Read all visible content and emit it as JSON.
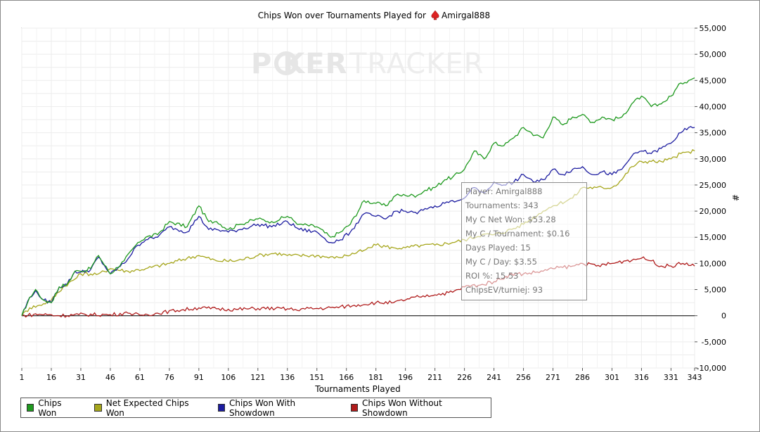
{
  "window": {
    "title_prefix": "Chips Won over Tournaments Played for",
    "player_name": "Amirgal888",
    "player_icon": "spade-icon"
  },
  "watermark": {
    "text_poker": "P KER",
    "text_tracker": "TRACKER"
  },
  "axes": {
    "xlabel": "Tournaments Played",
    "ylabel": "#"
  },
  "legend": [
    {
      "label": "Chips Won",
      "color": "#1f9a1f"
    },
    {
      "label": "Net Expected Chips Won",
      "color": "#a6a61c"
    },
    {
      "label": "Chips Won With Showdown",
      "color": "#1c1ca0"
    },
    {
      "label": "Chips Won Without Showdown",
      "color": "#b01c1c"
    }
  ],
  "tooltip": {
    "lines": [
      "Player: Amirgal888",
      "Tournaments: 343",
      "My C Net Won: $53.28",
      "My C / Tournament: $0.16",
      "Days Played: 15",
      "My C / Day: $3.55",
      "ROI %: 15.53",
      "ChipsEV/turniej: 93"
    ]
  },
  "chart_data": {
    "type": "line",
    "title": "Chips Won over Tournaments Played for Amirgal888",
    "xlabel": "Tournaments Played",
    "ylabel": "#",
    "xlim": [
      1,
      343
    ],
    "ylim": [
      -10000,
      55000
    ],
    "x_ticks": [
      1,
      16,
      31,
      46,
      61,
      76,
      91,
      106,
      121,
      136,
      151,
      166,
      181,
      196,
      211,
      226,
      241,
      256,
      271,
      286,
      301,
      316,
      331,
      343
    ],
    "y_ticks": [
      -10000,
      -5000,
      0,
      5000,
      10000,
      15000,
      20000,
      25000,
      30000,
      35000,
      40000,
      45000,
      50000,
      55000
    ],
    "y_tick_labels": [
      "-10,000",
      "-5,000",
      "0",
      "5,000",
      "10,000",
      "15,000",
      "20,000",
      "25,000",
      "30,000",
      "35,000",
      "40,000",
      "45,000",
      "50,000",
      "55,000"
    ],
    "grid": true,
    "legend_position": "bottom",
    "series": [
      {
        "name": "Chips Won",
        "color": "#1f9a1f",
        "x": [
          1,
          5,
          8,
          12,
          16,
          20,
          24,
          28,
          31,
          36,
          40,
          46,
          53,
          60,
          64,
          70,
          76,
          85,
          91,
          96,
          100,
          106,
          112,
          121,
          128,
          136,
          142,
          151,
          158,
          163,
          168,
          175,
          181,
          186,
          191,
          196,
          202,
          206,
          211,
          216,
          220,
          226,
          231,
          236,
          241,
          246,
          251,
          256,
          262,
          266,
          271,
          276,
          281,
          286,
          291,
          296,
          301,
          306,
          311,
          316,
          321,
          326,
          331,
          336,
          340,
          343
        ],
        "y": [
          0,
          3500,
          5000,
          3000,
          2500,
          5500,
          6000,
          8500,
          8500,
          9000,
          11500,
          8000,
          10500,
          14000,
          15000,
          15500,
          18000,
          17000,
          21000,
          18000,
          18000,
          16500,
          17500,
          18500,
          18000,
          19000,
          17500,
          17000,
          15000,
          16000,
          17500,
          22000,
          21500,
          21000,
          23000,
          23000,
          23000,
          24000,
          24500,
          26000,
          26500,
          28000,
          31500,
          30000,
          33000,
          32500,
          34000,
          36000,
          34500,
          34000,
          38000,
          36500,
          38000,
          38500,
          37000,
          38000,
          37500,
          38000,
          40500,
          42000,
          40000,
          40500,
          42000,
          44500,
          45000,
          45500
        ]
      },
      {
        "name": "Net Expected Chips Won",
        "color": "#a6a61c",
        "x": [
          1,
          5,
          10,
          16,
          22,
          28,
          31,
          40,
          46,
          55,
          64,
          76,
          85,
          91,
          100,
          110,
          121,
          130,
          136,
          145,
          151,
          160,
          166,
          175,
          181,
          190,
          196,
          205,
          211,
          220,
          226,
          235,
          241,
          250,
          256,
          266,
          271,
          281,
          286,
          293,
          301,
          306,
          311,
          316,
          321,
          326,
          331,
          336,
          343
        ],
        "y": [
          0,
          1500,
          2000,
          3000,
          5500,
          7000,
          8000,
          8000,
          9000,
          8500,
          9000,
          10000,
          11000,
          11500,
          10500,
          10500,
          11500,
          12000,
          11500,
          11500,
          11500,
          11000,
          11500,
          12500,
          13500,
          13000,
          13000,
          13500,
          13500,
          14000,
          14500,
          15500,
          15500,
          16500,
          17500,
          20000,
          21000,
          22500,
          24500,
          24500,
          24500,
          26000,
          28500,
          29500,
          29500,
          29500,
          30000,
          31000,
          31500
        ]
      },
      {
        "name": "Chips Won With Showdown",
        "color": "#1c1ca0",
        "x": [
          1,
          5,
          8,
          12,
          16,
          20,
          24,
          28,
          31,
          36,
          40,
          46,
          53,
          60,
          64,
          70,
          76,
          85,
          91,
          96,
          100,
          106,
          112,
          121,
          128,
          136,
          142,
          151,
          158,
          163,
          168,
          175,
          181,
          186,
          191,
          196,
          202,
          206,
          211,
          216,
          220,
          226,
          231,
          236,
          241,
          246,
          251,
          256,
          262,
          266,
          271,
          276,
          281,
          286,
          291,
          296,
          301,
          306,
          311,
          316,
          321,
          326,
          331,
          336,
          340,
          343
        ],
        "y": [
          0,
          3500,
          4800,
          3000,
          2500,
          5500,
          6000,
          8500,
          8300,
          8800,
          11200,
          8000,
          10000,
          13500,
          14500,
          15000,
          17000,
          16000,
          19000,
          16500,
          16500,
          16000,
          16500,
          17500,
          17000,
          18000,
          16500,
          16000,
          14000,
          14500,
          16000,
          19500,
          19000,
          18500,
          20000,
          20000,
          19500,
          20500,
          21000,
          21500,
          22000,
          22500,
          24500,
          23500,
          25500,
          25000,
          25500,
          27000,
          25500,
          26000,
          28000,
          27000,
          28000,
          28500,
          27000,
          27500,
          27000,
          28000,
          30500,
          31500,
          31000,
          32000,
          33000,
          35000,
          36000,
          36000
        ]
      },
      {
        "name": "Chips Won Without Showdown",
        "color": "#b01c1c",
        "x": [
          1,
          10,
          20,
          30,
          46,
          55,
          61,
          70,
          80,
          91,
          100,
          110,
          121,
          130,
          140,
          151,
          160,
          170,
          181,
          190,
          196,
          205,
          211,
          220,
          226,
          235,
          241,
          250,
          256,
          266,
          271,
          281,
          286,
          293,
          301,
          308,
          316,
          321,
          326,
          331,
          337,
          343
        ],
        "y": [
          0,
          300,
          0,
          200,
          200,
          500,
          100,
          500,
          1000,
          1500,
          1300,
          1200,
          1400,
          1400,
          1200,
          1400,
          1500,
          2000,
          2500,
          2500,
          3000,
          3800,
          4000,
          4500,
          5500,
          6000,
          6500,
          8000,
          8000,
          8500,
          9000,
          9500,
          10000,
          9500,
          10000,
          10500,
          11000,
          10500,
          9500,
          9500,
          10000,
          9500
        ]
      }
    ]
  }
}
